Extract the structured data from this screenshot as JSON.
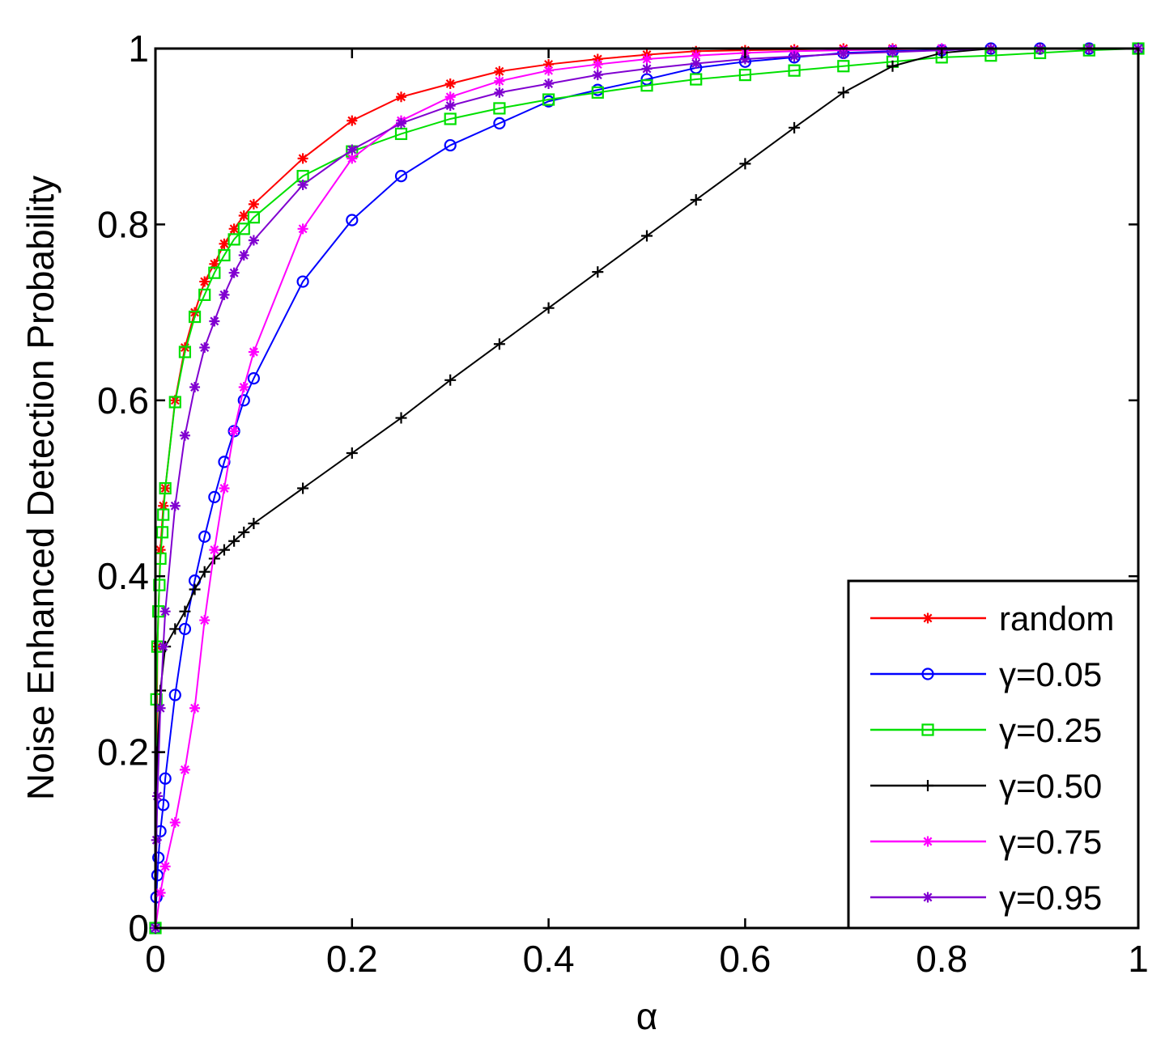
{
  "chart_data": {
    "type": "line",
    "xlabel": "α",
    "ylabel": "Noise Enhanced Detection Probability",
    "xlim": [
      0,
      1
    ],
    "ylim": [
      0,
      1
    ],
    "xticks": [
      0,
      0.2,
      0.4,
      0.6,
      0.8,
      1
    ],
    "yticks": [
      0,
      0.2,
      0.4,
      0.6,
      0.8,
      1
    ],
    "xtick_labels": [
      "0",
      "0.2",
      "0.4",
      "0.6",
      "0.8",
      "1"
    ],
    "ytick_labels": [
      "0",
      "0.2",
      "0.4",
      "0.6",
      "0.8",
      "1"
    ],
    "grid": false,
    "legend_position": "bottom-right",
    "series": [
      {
        "name": "random",
        "color": "#ff0000",
        "marker": "star",
        "points": [
          [
            0,
            0
          ],
          [
            0.002,
            0.32
          ],
          [
            0.005,
            0.43
          ],
          [
            0.008,
            0.48
          ],
          [
            0.01,
            0.5
          ],
          [
            0.02,
            0.6
          ],
          [
            0.03,
            0.66
          ],
          [
            0.04,
            0.7
          ],
          [
            0.05,
            0.735
          ],
          [
            0.06,
            0.755
          ],
          [
            0.07,
            0.778
          ],
          [
            0.08,
            0.795
          ],
          [
            0.09,
            0.81
          ],
          [
            0.1,
            0.823
          ],
          [
            0.15,
            0.875
          ],
          [
            0.2,
            0.918
          ],
          [
            0.25,
            0.945
          ],
          [
            0.3,
            0.96
          ],
          [
            0.35,
            0.974
          ],
          [
            0.4,
            0.982
          ],
          [
            0.45,
            0.988
          ],
          [
            0.5,
            0.993
          ],
          [
            0.55,
            0.997
          ],
          [
            0.6,
            0.998
          ],
          [
            0.65,
            0.999
          ],
          [
            0.7,
            1
          ],
          [
            0.75,
            1
          ],
          [
            0.8,
            1
          ],
          [
            0.85,
            1
          ],
          [
            0.9,
            1
          ],
          [
            0.95,
            1
          ],
          [
            1,
            1
          ]
        ]
      },
      {
        "name": "γ=0.05",
        "color": "#0000ff",
        "marker": "circle",
        "points": [
          [
            0,
            0
          ],
          [
            0.001,
            0.035
          ],
          [
            0.002,
            0.06
          ],
          [
            0.003,
            0.08
          ],
          [
            0.005,
            0.11
          ],
          [
            0.008,
            0.14
          ],
          [
            0.01,
            0.17
          ],
          [
            0.02,
            0.265
          ],
          [
            0.03,
            0.34
          ],
          [
            0.04,
            0.395
          ],
          [
            0.05,
            0.445
          ],
          [
            0.06,
            0.49
          ],
          [
            0.07,
            0.53
          ],
          [
            0.08,
            0.565
          ],
          [
            0.09,
            0.6
          ],
          [
            0.1,
            0.625
          ],
          [
            0.15,
            0.735
          ],
          [
            0.2,
            0.805
          ],
          [
            0.25,
            0.855
          ],
          [
            0.3,
            0.89
          ],
          [
            0.35,
            0.915
          ],
          [
            0.4,
            0.94
          ],
          [
            0.45,
            0.953
          ],
          [
            0.5,
            0.965
          ],
          [
            0.55,
            0.978
          ],
          [
            0.6,
            0.985
          ],
          [
            0.65,
            0.99
          ],
          [
            0.7,
            0.995
          ],
          [
            0.75,
            0.997
          ],
          [
            0.8,
            0.998
          ],
          [
            0.85,
            1
          ],
          [
            0.9,
            1
          ],
          [
            0.95,
            1
          ],
          [
            1,
            1
          ]
        ]
      },
      {
        "name": "γ=0.25",
        "color": "#00e000",
        "marker": "square",
        "points": [
          [
            0,
            0
          ],
          [
            0.001,
            0.26
          ],
          [
            0.002,
            0.32
          ],
          [
            0.003,
            0.36
          ],
          [
            0.004,
            0.39
          ],
          [
            0.005,
            0.42
          ],
          [
            0.007,
            0.45
          ],
          [
            0.008,
            0.47
          ],
          [
            0.01,
            0.5
          ],
          [
            0.02,
            0.598
          ],
          [
            0.03,
            0.655
          ],
          [
            0.04,
            0.695
          ],
          [
            0.05,
            0.72
          ],
          [
            0.06,
            0.745
          ],
          [
            0.07,
            0.765
          ],
          [
            0.08,
            0.783
          ],
          [
            0.09,
            0.795
          ],
          [
            0.1,
            0.808
          ],
          [
            0.15,
            0.855
          ],
          [
            0.2,
            0.883
          ],
          [
            0.25,
            0.903
          ],
          [
            0.3,
            0.92
          ],
          [
            0.35,
            0.932
          ],
          [
            0.4,
            0.942
          ],
          [
            0.45,
            0.95
          ],
          [
            0.5,
            0.958
          ],
          [
            0.55,
            0.965
          ],
          [
            0.6,
            0.97
          ],
          [
            0.65,
            0.975
          ],
          [
            0.7,
            0.98
          ],
          [
            0.75,
            0.985
          ],
          [
            0.8,
            0.99
          ],
          [
            0.85,
            0.992
          ],
          [
            0.9,
            0.995
          ],
          [
            0.95,
            0.998
          ],
          [
            1,
            1
          ]
        ]
      },
      {
        "name": "γ=0.50",
        "color": "#000000",
        "marker": "plus",
        "points": [
          [
            0,
            0
          ],
          [
            0.002,
            0.2
          ],
          [
            0.005,
            0.27
          ],
          [
            0.01,
            0.32
          ],
          [
            0.02,
            0.34
          ],
          [
            0.03,
            0.36
          ],
          [
            0.04,
            0.385
          ],
          [
            0.05,
            0.405
          ],
          [
            0.06,
            0.42
          ],
          [
            0.07,
            0.43
          ],
          [
            0.08,
            0.44
          ],
          [
            0.09,
            0.45
          ],
          [
            0.1,
            0.46
          ],
          [
            0.15,
            0.5
          ],
          [
            0.2,
            0.54
          ],
          [
            0.25,
            0.58
          ],
          [
            0.3,
            0.623
          ],
          [
            0.35,
            0.664
          ],
          [
            0.4,
            0.705
          ],
          [
            0.45,
            0.746
          ],
          [
            0.5,
            0.787
          ],
          [
            0.55,
            0.828
          ],
          [
            0.6,
            0.869
          ],
          [
            0.65,
            0.91
          ],
          [
            0.7,
            0.95
          ],
          [
            0.75,
            0.98
          ],
          [
            0.8,
            0.995
          ],
          [
            0.85,
            1
          ],
          [
            0.9,
            1
          ],
          [
            0.95,
            1
          ],
          [
            1,
            1
          ]
        ]
      },
      {
        "name": "γ=0.75",
        "color": "#ff00ff",
        "marker": "star",
        "points": [
          [
            0,
            0
          ],
          [
            0.005,
            0.04
          ],
          [
            0.01,
            0.07
          ],
          [
            0.02,
            0.12
          ],
          [
            0.03,
            0.18
          ],
          [
            0.04,
            0.25
          ],
          [
            0.05,
            0.35
          ],
          [
            0.06,
            0.43
          ],
          [
            0.07,
            0.5
          ],
          [
            0.08,
            0.565
          ],
          [
            0.09,
            0.615
          ],
          [
            0.1,
            0.655
          ],
          [
            0.15,
            0.795
          ],
          [
            0.2,
            0.875
          ],
          [
            0.25,
            0.918
          ],
          [
            0.3,
            0.945
          ],
          [
            0.35,
            0.963
          ],
          [
            0.4,
            0.975
          ],
          [
            0.45,
            0.982
          ],
          [
            0.5,
            0.988
          ],
          [
            0.55,
            0.992
          ],
          [
            0.6,
            0.995
          ],
          [
            0.65,
            0.997
          ],
          [
            0.7,
            0.998
          ],
          [
            0.75,
            0.999
          ],
          [
            0.8,
            1
          ],
          [
            0.85,
            1
          ],
          [
            0.9,
            1
          ],
          [
            0.95,
            1
          ],
          [
            1,
            1
          ]
        ]
      },
      {
        "name": "γ=0.95",
        "color": "#8000d0",
        "marker": "star",
        "points": [
          [
            0,
            0
          ],
          [
            0.001,
            0.1
          ],
          [
            0.002,
            0.15
          ],
          [
            0.005,
            0.25
          ],
          [
            0.008,
            0.32
          ],
          [
            0.01,
            0.36
          ],
          [
            0.02,
            0.48
          ],
          [
            0.03,
            0.56
          ],
          [
            0.04,
            0.615
          ],
          [
            0.05,
            0.66
          ],
          [
            0.06,
            0.69
          ],
          [
            0.07,
            0.72
          ],
          [
            0.08,
            0.745
          ],
          [
            0.09,
            0.765
          ],
          [
            0.1,
            0.782
          ],
          [
            0.15,
            0.845
          ],
          [
            0.2,
            0.885
          ],
          [
            0.25,
            0.915
          ],
          [
            0.3,
            0.935
          ],
          [
            0.35,
            0.95
          ],
          [
            0.4,
            0.96
          ],
          [
            0.45,
            0.97
          ],
          [
            0.5,
            0.977
          ],
          [
            0.55,
            0.983
          ],
          [
            0.6,
            0.988
          ],
          [
            0.65,
            0.991
          ],
          [
            0.7,
            0.994
          ],
          [
            0.75,
            0.996
          ],
          [
            0.8,
            0.998
          ],
          [
            0.85,
            1
          ],
          [
            0.9,
            1
          ],
          [
            0.95,
            1
          ],
          [
            1,
            1
          ]
        ]
      }
    ]
  }
}
